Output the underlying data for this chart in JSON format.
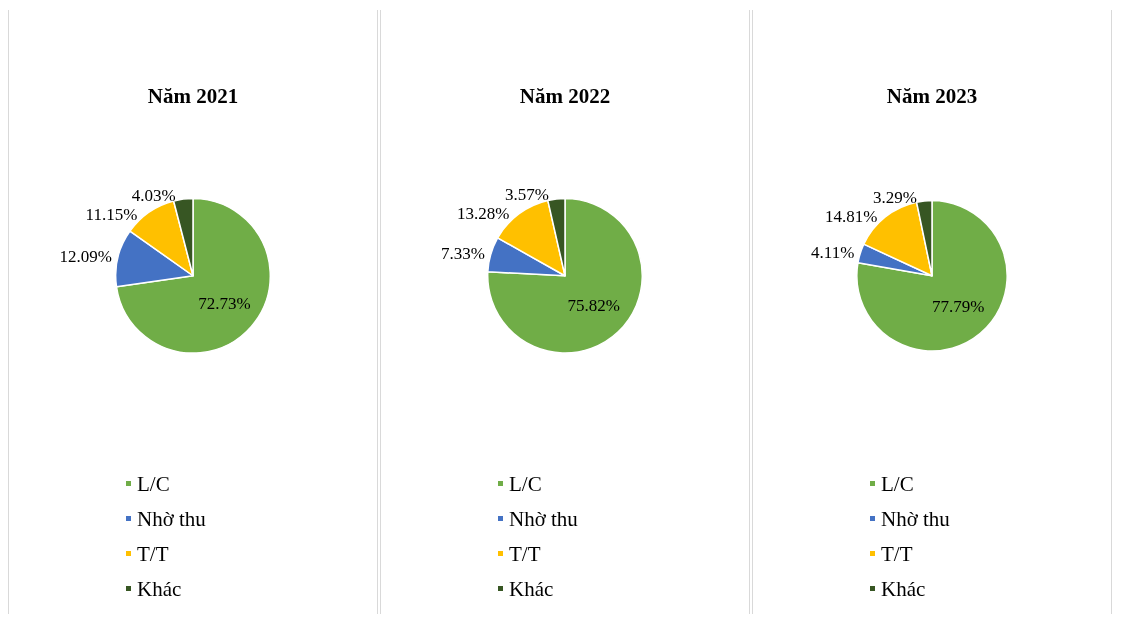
{
  "chart_data": [
    {
      "type": "pie",
      "title": "Năm 2021",
      "categories": [
        "L/C",
        "Nhờ thu",
        "T/T",
        "Khác"
      ],
      "values": [
        72.73,
        12.09,
        11.15,
        4.03
      ],
      "value_labels": [
        "72.73%",
        "12.09%",
        "11.15%",
        "4.03%"
      ],
      "colors": [
        "#70ad47",
        "#4472c4",
        "#ffc000",
        "#375623"
      ],
      "legend": "bottom"
    },
    {
      "type": "pie",
      "title": "Năm 2022",
      "categories": [
        "L/C",
        "Nhờ thu",
        "T/T",
        "Khác"
      ],
      "values": [
        75.82,
        7.33,
        13.28,
        3.57
      ],
      "value_labels": [
        "75.82%",
        "7.33%",
        "13.28%",
        "3.57%"
      ],
      "colors": [
        "#70ad47",
        "#4472c4",
        "#ffc000",
        "#375623"
      ],
      "legend": "bottom"
    },
    {
      "type": "pie",
      "title": "Năm 2023",
      "categories": [
        "L/C",
        "Nhờ thu",
        "T/T",
        "Khác"
      ],
      "values": [
        77.79,
        4.11,
        14.81,
        3.29
      ],
      "value_labels": [
        "77.79%",
        "4.11%",
        "14.81%",
        "3.29%"
      ],
      "colors": [
        "#70ad47",
        "#4472c4",
        "#ffc000",
        "#375623"
      ],
      "legend": "bottom"
    }
  ]
}
